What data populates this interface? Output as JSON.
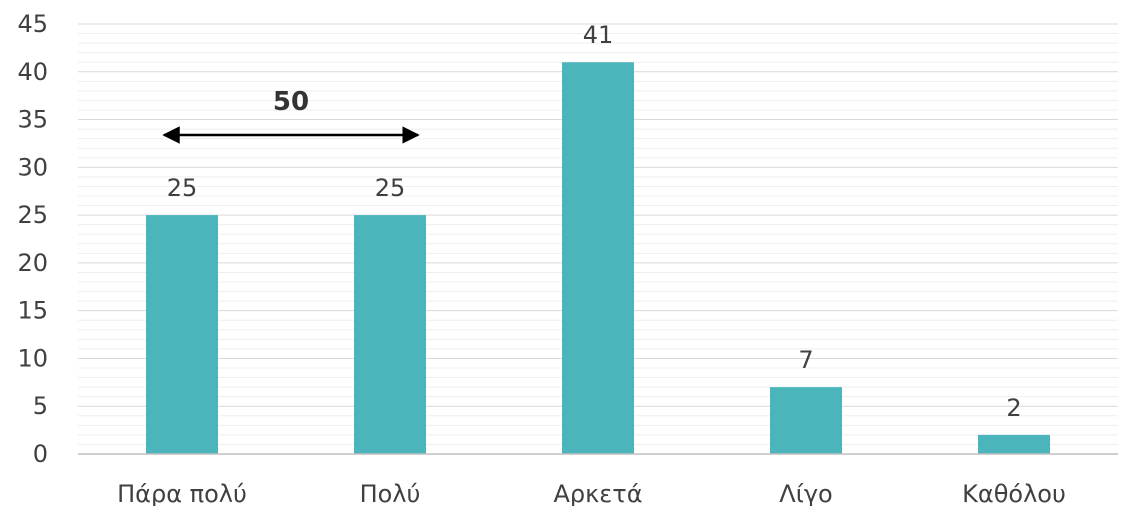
{
  "chart_data": {
    "type": "bar",
    "categories": [
      "Πάρα πολύ",
      "Πολύ",
      "Αρκετά",
      "Λίγο",
      "Καθόλου"
    ],
    "values": [
      25,
      25,
      41,
      7,
      2
    ],
    "ylim": [
      0,
      45
    ],
    "y_ticks": [
      0,
      5,
      10,
      15,
      20,
      25,
      30,
      35,
      40,
      45
    ],
    "grid": true,
    "bar_color": "#4bb5bb",
    "annotation": {
      "label": "50",
      "spans_categories": [
        "Πάρα πολύ",
        "Πολύ"
      ],
      "style": "double-arrow"
    }
  }
}
